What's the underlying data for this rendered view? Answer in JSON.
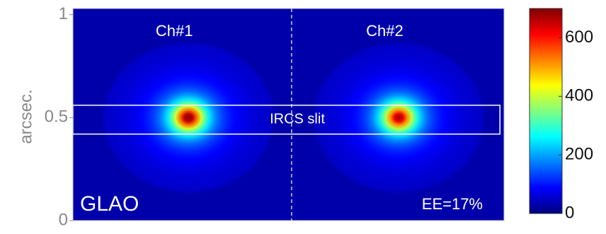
{
  "chart_data": {
    "type": "heatmap",
    "ylabel": "arcsec.",
    "xlim": [
      0,
      2.09
    ],
    "ylim": [
      0,
      1.03
    ],
    "yticks": [
      0,
      0.5,
      1
    ],
    "clim": [
      0,
      700
    ],
    "cticks": [
      0,
      200,
      400,
      600
    ],
    "colormap": "jet",
    "background": 30,
    "divider_x": 1.06,
    "spots": [
      {
        "name": "Ch#1",
        "x": 0.56,
        "y": 0.5,
        "peak": 680,
        "fwhm": 0.13
      },
      {
        "name": "Ch#2",
        "x": 1.58,
        "y": 0.5,
        "peak": 650,
        "fwhm": 0.13
      }
    ],
    "slit": {
      "label": "IRCS slit",
      "x": [
        0,
        2.07
      ],
      "y": [
        0.42,
        0.56
      ]
    },
    "annotations": [
      "GLAO",
      "EE=17%"
    ]
  }
}
